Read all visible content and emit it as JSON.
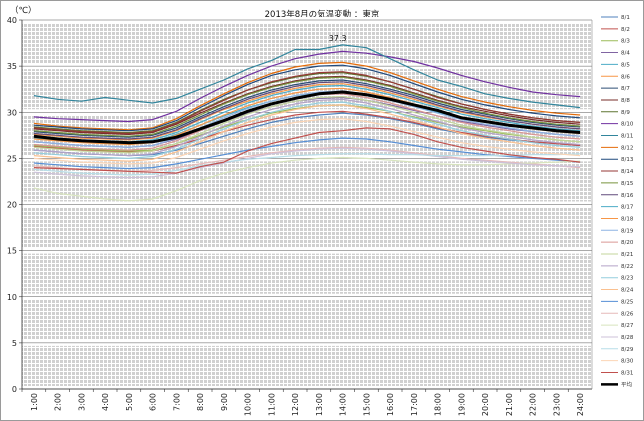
{
  "chart_data": {
    "type": "line",
    "title": "2013年8月の気温変動 ：東京",
    "ylabel": "（℃）",
    "xlabel": "",
    "ylim": [
      0,
      40
    ],
    "yticks": [
      0,
      5,
      10,
      15,
      20,
      25,
      30,
      35,
      40
    ],
    "grid": true,
    "legend_position": "right",
    "x": [
      "1:00",
      "2:00",
      "3:00",
      "4:00",
      "5:00",
      "6:00",
      "7:00",
      "8:00",
      "9:00",
      "10:00",
      "11:00",
      "12:00",
      "13:00",
      "14:00",
      "15:00",
      "16:00",
      "17:00",
      "18:00",
      "19:00",
      "20:00",
      "21:00",
      "22:00",
      "23:00",
      "24:00"
    ],
    "annotations": [
      {
        "x": "14:00",
        "y": 37.3,
        "text": "37.3"
      }
    ],
    "series": [
      {
        "name": "8/1",
        "color": "#4f81bd",
        "values": [
          25.9,
          25.7,
          25.5,
          25.4,
          25.3,
          25.4,
          25.9,
          26.6,
          27.4,
          28.2,
          28.9,
          29.4,
          29.7,
          29.9,
          29.7,
          29.3,
          28.8,
          28.2,
          27.7,
          27.3,
          27.0,
          26.8,
          26.6,
          26.4
        ]
      },
      {
        "name": "8/2",
        "color": "#c0504d",
        "values": [
          26.3,
          26.1,
          25.9,
          25.8,
          25.7,
          25.8,
          26.4,
          27.1,
          27.9,
          28.6,
          29.2,
          29.7,
          30.0,
          30.1,
          29.8,
          29.4,
          28.9,
          28.3,
          27.8,
          27.4,
          27.1,
          26.8,
          26.6,
          26.4
        ]
      },
      {
        "name": "8/3",
        "color": "#9bbb59",
        "values": [
          26.4,
          26.2,
          26.0,
          25.9,
          25.8,
          25.9,
          26.6,
          27.5,
          28.4,
          29.2,
          29.9,
          30.4,
          30.7,
          30.8,
          30.5,
          30.1,
          29.5,
          28.9,
          28.4,
          28.0,
          27.6,
          27.3,
          27.0,
          26.8
        ]
      },
      {
        "name": "8/4",
        "color": "#8064a2",
        "values": [
          26.8,
          26.6,
          26.4,
          26.3,
          26.2,
          26.4,
          27.1,
          28.0,
          29.0,
          29.9,
          30.6,
          31.2,
          31.5,
          31.6,
          31.3,
          30.8,
          30.2,
          29.6,
          29.0,
          28.6,
          28.2,
          27.9,
          27.6,
          27.4
        ]
      },
      {
        "name": "8/5",
        "color": "#4bacc6",
        "values": [
          27.2,
          27.0,
          26.8,
          26.7,
          26.6,
          26.8,
          27.6,
          28.6,
          29.6,
          30.5,
          31.2,
          31.8,
          32.1,
          32.2,
          31.8,
          31.3,
          30.7,
          30.0,
          29.4,
          28.9,
          28.5,
          28.2,
          27.9,
          27.7
        ]
      },
      {
        "name": "8/6",
        "color": "#f79646",
        "values": [
          27.6,
          27.4,
          27.2,
          27.1,
          27.0,
          27.2,
          28.0,
          29.2,
          30.3,
          31.2,
          32.0,
          32.6,
          33.0,
          33.1,
          32.7,
          32.1,
          31.4,
          30.7,
          30.0,
          29.5,
          29.1,
          28.7,
          28.4,
          28.2
        ]
      },
      {
        "name": "8/7",
        "color": "#2c4d75",
        "values": [
          27.9,
          27.7,
          27.5,
          27.4,
          27.3,
          27.5,
          28.3,
          29.5,
          30.6,
          31.6,
          32.4,
          33.0,
          33.4,
          33.5,
          33.1,
          32.5,
          31.8,
          31.0,
          30.3,
          29.8,
          29.3,
          28.9,
          28.6,
          28.4
        ]
      },
      {
        "name": "8/8",
        "color": "#772c2a",
        "values": [
          28.2,
          28.0,
          27.8,
          27.7,
          27.6,
          27.8,
          28.7,
          29.9,
          31.0,
          32.0,
          32.8,
          33.4,
          33.8,
          33.9,
          33.5,
          32.9,
          32.1,
          31.3,
          30.6,
          30.1,
          29.6,
          29.2,
          28.9,
          28.7
        ]
      },
      {
        "name": "8/9",
        "color": "#5f7530",
        "values": [
          28.4,
          28.2,
          28.0,
          27.9,
          27.8,
          28.0,
          28.9,
          30.2,
          31.4,
          32.4,
          33.2,
          33.8,
          34.2,
          34.3,
          33.9,
          33.3,
          32.5,
          31.7,
          30.9,
          30.3,
          29.8,
          29.4,
          29.1,
          28.9
        ]
      },
      {
        "name": "8/10",
        "color": "#7030a0",
        "values": [
          29.5,
          29.3,
          29.2,
          29.1,
          29.0,
          29.2,
          30.1,
          31.5,
          32.8,
          34.0,
          35.0,
          35.8,
          36.3,
          36.6,
          36.4,
          36.0,
          35.5,
          34.8,
          34.0,
          33.3,
          32.7,
          32.2,
          31.9,
          31.7
        ]
      },
      {
        "name": "8/11",
        "color": "#31859c",
        "values": [
          31.8,
          31.4,
          31.2,
          31.6,
          31.3,
          31.0,
          31.5,
          32.5,
          33.5,
          34.7,
          35.6,
          36.8,
          36.8,
          37.3,
          37.0,
          35.8,
          34.6,
          33.5,
          32.8,
          32.0,
          31.5,
          31.1,
          30.8,
          30.5
        ]
      },
      {
        "name": "8/12",
        "color": "#e46c0a",
        "values": [
          28.8,
          28.5,
          28.3,
          28.2,
          28.1,
          28.3,
          29.3,
          30.7,
          32.0,
          33.2,
          34.2,
          34.9,
          35.3,
          35.4,
          35.0,
          34.3,
          33.4,
          32.5,
          31.7,
          31.1,
          30.6,
          30.2,
          29.9,
          29.7
        ]
      },
      {
        "name": "8/13",
        "color": "#1f497d",
        "values": [
          28.6,
          28.4,
          28.2,
          28.1,
          28.0,
          28.2,
          29.1,
          30.5,
          31.8,
          33.0,
          34.0,
          34.6,
          35.0,
          35.1,
          34.7,
          34.0,
          33.1,
          32.2,
          31.4,
          30.8,
          30.3,
          29.9,
          29.6,
          29.4
        ]
      },
      {
        "name": "8/14",
        "color": "#953735",
        "values": [
          28.3,
          28.1,
          27.9,
          27.8,
          27.7,
          27.9,
          28.8,
          30.1,
          31.3,
          32.4,
          33.3,
          33.9,
          34.3,
          34.4,
          34.0,
          33.3,
          32.5,
          31.6,
          30.9,
          30.3,
          29.8,
          29.4,
          29.1,
          28.9
        ]
      },
      {
        "name": "8/15",
        "color": "#77933c",
        "values": [
          28.0,
          27.8,
          27.6,
          27.5,
          27.4,
          27.6,
          28.5,
          29.7,
          30.9,
          31.9,
          32.7,
          33.3,
          33.7,
          33.8,
          33.4,
          32.8,
          32.0,
          31.2,
          30.5,
          29.9,
          29.4,
          29.0,
          28.7,
          28.5
        ]
      },
      {
        "name": "8/16",
        "color": "#604a7b",
        "values": [
          27.7,
          27.5,
          27.3,
          27.2,
          27.1,
          27.3,
          28.1,
          29.3,
          30.4,
          31.4,
          32.2,
          32.8,
          33.2,
          33.3,
          32.9,
          32.3,
          31.6,
          30.8,
          30.1,
          29.6,
          29.1,
          28.7,
          28.4,
          28.2
        ]
      },
      {
        "name": "8/17",
        "color": "#4bacc6",
        "values": [
          27.4,
          27.2,
          27.0,
          26.9,
          26.8,
          27.0,
          27.8,
          28.9,
          30.0,
          31.0,
          31.8,
          32.4,
          32.8,
          32.9,
          32.5,
          31.9,
          31.2,
          30.5,
          29.8,
          29.3,
          28.9,
          28.5,
          28.2,
          28.0
        ]
      },
      {
        "name": "8/18",
        "color": "#f79646",
        "values": [
          27.1,
          26.9,
          26.7,
          26.6,
          26.5,
          26.7,
          27.5,
          28.6,
          29.7,
          30.7,
          31.5,
          32.1,
          32.5,
          32.6,
          32.2,
          31.6,
          30.9,
          30.2,
          29.5,
          29.0,
          28.6,
          28.2,
          27.9,
          27.7
        ]
      },
      {
        "name": "8/19",
        "color": "#8eb4e3",
        "values": [
          26.8,
          26.6,
          26.4,
          26.3,
          26.2,
          26.4,
          27.2,
          28.3,
          29.4,
          30.4,
          31.2,
          31.8,
          32.2,
          32.3,
          31.9,
          31.3,
          30.6,
          29.9,
          29.2,
          28.7,
          28.3,
          27.9,
          27.6,
          27.4
        ]
      },
      {
        "name": "8/20",
        "color": "#d99694",
        "values": [
          26.5,
          26.3,
          26.1,
          26.0,
          25.9,
          26.1,
          26.9,
          28.0,
          29.1,
          30.1,
          30.9,
          31.5,
          31.9,
          32.0,
          31.6,
          31.0,
          30.3,
          29.6,
          28.9,
          28.4,
          28.0,
          27.6,
          27.3,
          27.1
        ]
      },
      {
        "name": "8/21",
        "color": "#c3d69b",
        "values": [
          26.2,
          26.0,
          25.8,
          25.7,
          25.6,
          25.8,
          26.6,
          27.7,
          28.8,
          29.8,
          30.6,
          31.2,
          31.6,
          31.7,
          31.3,
          30.7,
          30.0,
          29.3,
          28.6,
          28.1,
          27.7,
          27.3,
          27.0,
          26.8
        ]
      },
      {
        "name": "8/22",
        "color": "#b3a2c7",
        "values": [
          25.9,
          25.7,
          25.5,
          25.4,
          25.3,
          25.5,
          26.3,
          27.4,
          28.5,
          29.5,
          30.3,
          30.9,
          31.3,
          31.4,
          31.0,
          30.4,
          29.7,
          29.0,
          28.3,
          27.8,
          27.4,
          27.0,
          26.7,
          26.5
        ]
      },
      {
        "name": "8/23",
        "color": "#93cddd",
        "values": [
          25.6,
          25.4,
          25.2,
          25.1,
          25.0,
          25.2,
          26.0,
          27.1,
          28.2,
          29.2,
          30.0,
          30.6,
          31.0,
          31.1,
          30.7,
          30.1,
          29.4,
          28.7,
          28.0,
          27.5,
          27.1,
          26.7,
          26.4,
          26.2
        ]
      },
      {
        "name": "8/24",
        "color": "#fac08f",
        "values": [
          25.3,
          25.1,
          24.9,
          24.8,
          24.7,
          24.9,
          25.7,
          26.8,
          27.9,
          28.9,
          29.7,
          30.3,
          30.7,
          30.8,
          30.4,
          29.8,
          29.1,
          28.4,
          27.7,
          27.2,
          26.8,
          26.4,
          26.1,
          25.9
        ]
      },
      {
        "name": "8/25",
        "color": "#558ed5",
        "values": [
          24.5,
          24.3,
          24.1,
          24.0,
          23.9,
          24.0,
          24.4,
          24.9,
          25.4,
          25.9,
          26.3,
          26.7,
          27.0,
          27.2,
          27.1,
          26.8,
          26.4,
          26.0,
          25.7,
          25.4,
          25.2,
          25.0,
          24.8,
          24.6
        ]
      },
      {
        "name": "8/26",
        "color": "#e6b9b8",
        "values": [
          24.2,
          24.0,
          23.8,
          23.7,
          23.6,
          23.7,
          24.0,
          24.4,
          24.8,
          25.2,
          25.6,
          25.9,
          26.1,
          26.2,
          26.1,
          25.9,
          25.6,
          25.3,
          25.0,
          24.8,
          24.6,
          24.4,
          24.2,
          24.0
        ]
      },
      {
        "name": "8/27",
        "color": "#d7e4bd",
        "values": [
          21.8,
          21.2,
          20.9,
          20.6,
          20.4,
          20.6,
          21.5,
          22.6,
          23.4,
          24.0,
          24.5,
          24.8,
          25.0,
          25.1,
          25.0,
          24.8,
          24.6,
          24.4,
          24.3,
          24.3,
          24.4,
          24.5,
          24.6,
          24.7
        ]
      },
      {
        "name": "8/28",
        "color": "#ccc1da",
        "values": [
          23.5,
          23.3,
          23.1,
          23.0,
          22.9,
          23.0,
          23.4,
          24.0,
          24.5,
          25.0,
          25.5,
          25.8,
          26.0,
          26.1,
          26.0,
          25.8,
          25.5,
          25.2,
          24.9,
          24.7,
          24.5,
          24.3,
          24.2,
          24.1
        ]
      },
      {
        "name": "8/29",
        "color": "#b7dee8",
        "values": [
          23.8,
          23.6,
          23.4,
          23.3,
          23.2,
          23.3,
          23.7,
          24.2,
          24.6,
          24.9,
          25.1,
          25.3,
          25.4,
          25.5,
          25.5,
          25.4,
          25.4,
          25.3,
          25.3,
          25.3,
          25.3,
          25.4,
          25.4,
          25.5
        ]
      },
      {
        "name": "8/30",
        "color": "#fcd5b5",
        "values": [
          25.0,
          24.8,
          24.6,
          24.5,
          24.4,
          24.5,
          25.1,
          26.0,
          26.9,
          27.7,
          28.4,
          28.9,
          29.2,
          29.3,
          29.0,
          28.5,
          27.9,
          27.3,
          26.7,
          26.3,
          26.0,
          25.7,
          25.5,
          25.3
        ]
      },
      {
        "name": "8/31",
        "color": "#c0504d",
        "values": [
          24.0,
          23.9,
          23.8,
          23.7,
          23.6,
          23.5,
          23.4,
          24.1,
          24.6,
          25.8,
          26.6,
          27.2,
          27.8,
          28.0,
          28.3,
          28.2,
          27.6,
          26.8,
          26.2,
          25.8,
          25.4,
          25.1,
          24.9,
          24.6
        ]
      },
      {
        "name": "平均",
        "color": "#000000",
        "bold": true,
        "values": [
          27.4,
          27.1,
          26.9,
          26.8,
          26.7,
          26.8,
          27.3,
          28.2,
          29.1,
          30.1,
          30.9,
          31.5,
          32.0,
          32.2,
          31.9,
          31.4,
          30.8,
          30.2,
          29.4,
          29.0,
          28.6,
          28.3,
          28.0,
          27.8
        ]
      }
    ]
  }
}
